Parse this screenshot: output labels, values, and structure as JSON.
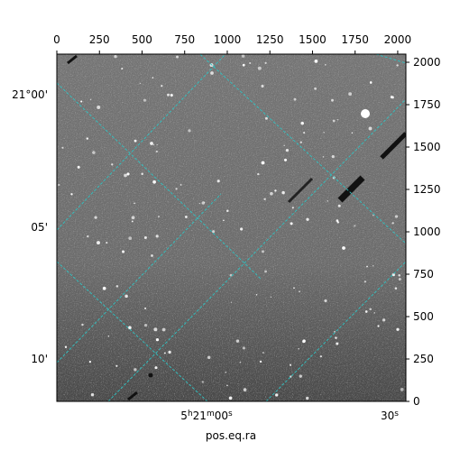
{
  "chart_data": {
    "type": "image",
    "title": "",
    "xlabel": "pos.eq.ra",
    "ylabel": "",
    "pixel_axes": {
      "x_ticks": [
        0,
        250,
        500,
        750,
        1000,
        1250,
        1500,
        1750,
        2000
      ],
      "y_ticks": [
        0,
        250,
        500,
        750,
        1000,
        1250,
        1500,
        1750,
        2000
      ],
      "xlim": [
        0,
        2048
      ],
      "ylim": [
        0,
        2048
      ]
    },
    "world_axes": {
      "ra_labels": [
        {
          "h": "5",
          "m": "21",
          "s": "00",
          "sup": true
        },
        {
          "s": "30",
          "sup": true
        }
      ],
      "dec_labels": [
        "21°00'",
        "05'",
        "10'"
      ]
    },
    "overlay": {
      "grid": true,
      "grid_color": "#2ec4c4",
      "background": "grayscale sky image"
    }
  }
}
